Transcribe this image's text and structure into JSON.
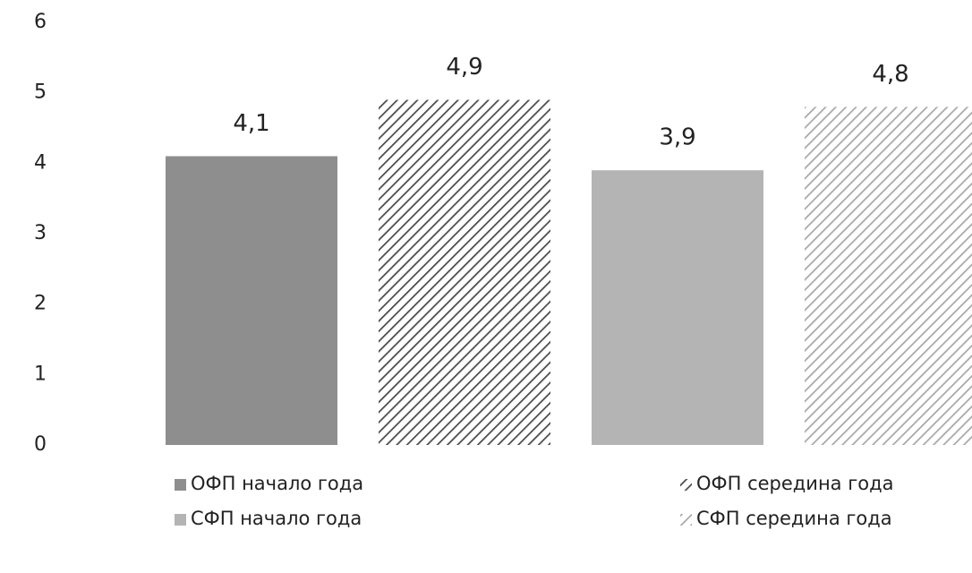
{
  "chart_data": {
    "type": "bar",
    "categories": [
      null
    ],
    "series": [
      {
        "name": "ОФП начало года",
        "color": "#8e8e8e",
        "pattern": "solid",
        "values": [
          4.1
        ],
        "value_labels": [
          "4,1"
        ]
      },
      {
        "name": "ОФП середина года",
        "color": "#4a4a4a",
        "pattern": "hatch",
        "values": [
          4.9
        ],
        "value_labels": [
          "4,9"
        ]
      },
      {
        "name": "СФП начало года",
        "color": "#b4b4b4",
        "pattern": "solid",
        "values": [
          3.9
        ],
        "value_labels": [
          "3,9"
        ]
      },
      {
        "name": "СФП середина года",
        "color": "#a8a8a8",
        "pattern": "hatch",
        "values": [
          4.8
        ],
        "value_labels": [
          "4,8"
        ]
      }
    ],
    "ylim": [
      0,
      6
    ],
    "yticks": [
      0,
      1,
      2,
      3,
      4,
      5,
      6
    ],
    "grid": false,
    "legend": "bottom"
  }
}
